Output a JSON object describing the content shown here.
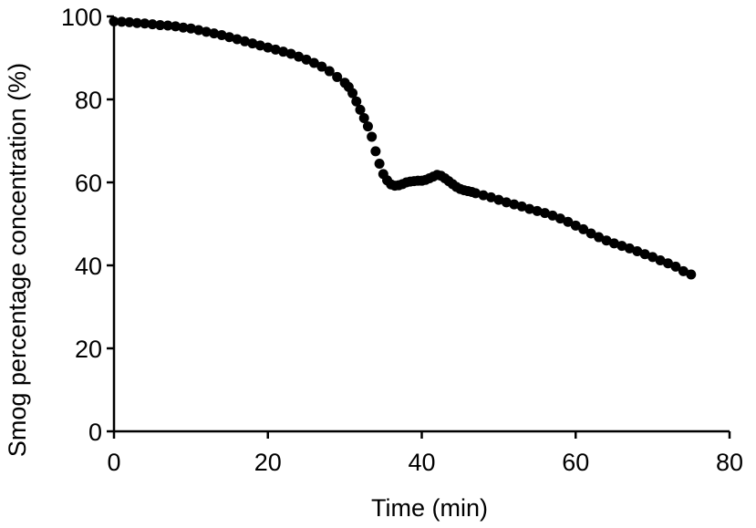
{
  "chart_data": {
    "type": "scatter",
    "title": "",
    "xlabel": "Time (min)",
    "ylabel": "Smog percentage concentration (%)",
    "xlim": [
      0,
      80
    ],
    "ylim": [
      0,
      100
    ],
    "xticks": [
      0,
      20,
      40,
      60,
      80
    ],
    "yticks": [
      0,
      20,
      40,
      60,
      80,
      100
    ],
    "grid": false,
    "marker_color": "#000000",
    "series": [
      {
        "x": [
          0,
          1,
          2,
          3,
          4,
          5,
          6,
          7,
          8,
          9,
          10,
          11,
          12,
          13,
          14,
          15,
          16,
          17,
          18,
          19,
          20,
          21,
          22,
          23,
          24,
          25,
          26,
          27,
          28,
          29,
          30,
          30.5,
          31,
          31.5,
          32,
          32.5,
          33,
          33.5,
          34,
          34.5,
          35,
          35.5,
          36,
          36.5,
          37,
          37.5,
          38,
          38.5,
          39,
          39.5,
          40,
          40.5,
          41,
          41.5,
          42,
          42.5,
          43,
          43.5,
          44,
          44.5,
          45,
          45.5,
          46,
          46.5,
          47,
          48,
          49,
          50,
          51,
          52,
          53,
          54,
          55,
          56,
          57,
          58,
          59,
          60,
          61,
          62,
          63,
          64,
          65,
          66,
          67,
          68,
          69,
          70,
          71,
          72,
          73,
          74,
          75
        ],
        "y": [
          98.8,
          98.7,
          98.6,
          98.4,
          98.3,
          98.1,
          97.9,
          97.8,
          97.6,
          97.3,
          97.1,
          96.7,
          96.3,
          95.9,
          95.5,
          95.0,
          94.5,
          94.0,
          93.5,
          93.0,
          92.5,
          92.0,
          91.5,
          91.0,
          90.3,
          89.6,
          88.8,
          87.9,
          86.8,
          85.4,
          84.0,
          83.0,
          81.5,
          79.5,
          77.5,
          75.5,
          73.5,
          71.0,
          67.5,
          64.5,
          62.0,
          60.5,
          59.5,
          59.2,
          59.3,
          59.6,
          60.0,
          60.2,
          60.3,
          60.4,
          60.4,
          60.6,
          61.0,
          61.4,
          61.8,
          61.6,
          61.0,
          60.3,
          59.6,
          58.9,
          58.4,
          58.1,
          57.9,
          57.7,
          57.4,
          56.9,
          56.4,
          55.8,
          55.2,
          54.7,
          54.2,
          53.6,
          53.1,
          52.6,
          52.0,
          51.3,
          50.5,
          49.6,
          48.7,
          47.7,
          46.8,
          46.0,
          45.3,
          44.7,
          44.1,
          43.4,
          42.7,
          42.0,
          41.2,
          40.5,
          39.7,
          38.6,
          37.8
        ]
      }
    ]
  }
}
